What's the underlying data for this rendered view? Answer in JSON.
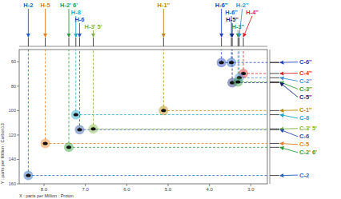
{
  "chart_data": {
    "type": "scatter",
    "xlabel": "X : parts per Million : Proton",
    "ylabel": "Y : parts per Million : Carbon13",
    "x": [
      8.38,
      7.97,
      7.4,
      7.23,
      7.14,
      6.81,
      5.11,
      3.71,
      3.47,
      3.18,
      3.45,
      3.28,
      3.31
    ],
    "values": [
      153.2,
      126.9,
      130.1,
      103.4,
      115.6,
      115.0,
      100.0,
      60.6,
      60.6,
      69.6,
      77.2,
      73.1,
      76.5
    ],
    "h_labels": [
      "H-2",
      "H-5",
      "H-2' 6'",
      "H-8",
      "H-6",
      "H-3' 5'",
      "H-1''",
      "H-6''",
      "H-6''",
      "H-4''",
      "H-5''",
      "H-2''",
      "H-3''"
    ],
    "c_labels": [
      "C-2",
      "C-5",
      "C-2' 6'",
      "C-8",
      "C-6",
      "C-3' 5'",
      "C-1''",
      "C-6''",
      null,
      "C-4''",
      "C-5''",
      "C-2''",
      "C-3''"
    ],
    "colors": [
      "#1f5fbf",
      "#e67e22",
      "#2e9b3a",
      "#18a8c8",
      "#2b4fa8",
      "#7cb342",
      "#b8860b",
      "#1f3fbf",
      "#1f5fbf",
      "#d62728",
      "#1a237e",
      "#3f8fd8",
      "#2e9b3a"
    ],
    "xlim": [
      8.6,
      2.6
    ],
    "ylim": [
      50,
      160
    ],
    "xticks": [
      {
        "value": 8,
        "label": "8.0"
      },
      {
        "value": 7,
        "label": "7.0"
      },
      {
        "value": 6,
        "label": "6.0"
      },
      {
        "value": 5,
        "label": "5.0"
      },
      {
        "value": 4,
        "label": "4.0"
      },
      {
        "value": 3,
        "label": "3.0"
      }
    ],
    "yticks": [
      60,
      80,
      100,
      120,
      140,
      160
    ],
    "grid": false
  }
}
